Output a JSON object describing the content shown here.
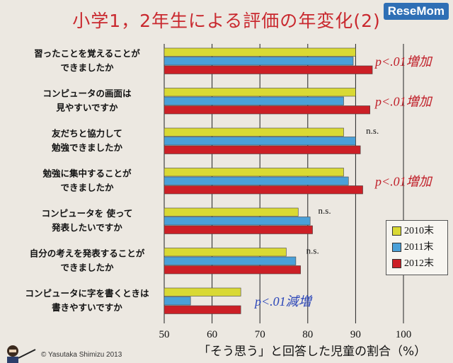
{
  "title": "小学1，2年生による評価の年変化(2)",
  "logo": "ReseMom",
  "copyright": "© Yasutaka Shimizu 2013",
  "colors": {
    "2010": "#d9d934",
    "2011": "#4aa0d8",
    "2012": "#cc1f26",
    "sig_red": "#c0202a",
    "sig_blue": "#2a45b8"
  },
  "chart_data": {
    "type": "bar",
    "orientation": "horizontal",
    "xlabel": "「そう思う」と回答した児童の割合（%）",
    "xlim": [
      50,
      100
    ],
    "xticks": [
      "50",
      "60",
      "70",
      "80",
      "90",
      "100"
    ],
    "grid": true,
    "legend_position": "right",
    "categories": [
      {
        "line1": "習ったことを覚えることが",
        "line2": "できましたか",
        "note": "p<.01増加",
        "note_color": "red"
      },
      {
        "line1": "コンピュータの画面は",
        "line2": "見やすいですか",
        "note": "p<.01増加",
        "note_color": "red"
      },
      {
        "line1": "友だちと協力して",
        "line2": "勉強できましたか",
        "note": "n.s.",
        "note_color": "black"
      },
      {
        "line1": "勉強に集中することが",
        "line2": "できましたか",
        "note": "p<.01増加",
        "note_color": "red"
      },
      {
        "line1": "コンピュータを 使って",
        "line2": "発表したいですか",
        "note": "n.s.",
        "note_color": "black"
      },
      {
        "line1": "自分の考えを発表することが",
        "line2": "できましたか",
        "note": "n.s.",
        "note_color": "black"
      },
      {
        "line1": "コンピュータに字を書くときは",
        "line2": "書きやすいですか",
        "note": "p<.01減増",
        "note_color": "blue"
      }
    ],
    "series": [
      {
        "name": "2010末",
        "values": [
          90,
          90,
          87.5,
          87.5,
          78,
          75.5,
          66
        ]
      },
      {
        "name": "2011末",
        "values": [
          89.5,
          87.5,
          90,
          88.5,
          80.5,
          77.5,
          55.5
        ]
      },
      {
        "name": "2012末",
        "values": [
          93.5,
          93,
          91,
          91.5,
          81,
          78.5,
          66
        ]
      }
    ]
  }
}
